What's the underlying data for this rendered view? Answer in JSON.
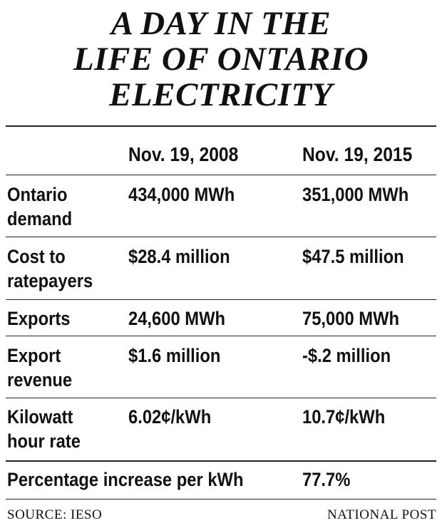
{
  "title": {
    "lines": [
      "A DAY IN THE",
      "LIFE OF ONTARIO",
      "ELECTRICITY"
    ]
  },
  "columns": [
    "Nov. 19, 2008",
    "Nov. 19, 2015"
  ],
  "rows": [
    {
      "label_lines": [
        "Ontario",
        "demand"
      ],
      "v2008": "434,000 MWh",
      "v2015": "351,000 MWh"
    },
    {
      "label_lines": [
        "Cost to",
        "ratepayers"
      ],
      "v2008": "$28.4 million",
      "v2015": "$47.5 million"
    },
    {
      "label_lines": [
        "Exports"
      ],
      "v2008": "24,600 MWh",
      "v2015": "75,000 MWh"
    },
    {
      "label_lines": [
        "Export",
        "revenue"
      ],
      "v2008": "$1.6 million",
      "v2015": "-$.2 million"
    },
    {
      "label_lines": [
        "Kilowatt",
        "hour rate"
      ],
      "v2008": "6.02¢/kWh",
      "v2015": "10.7¢/kWh"
    }
  ],
  "summary": {
    "label": "Percentage increase per kWh",
    "value": "77.7%"
  },
  "footer": {
    "source": "SOURCE: IESO",
    "credit": "NATIONAL POST"
  }
}
